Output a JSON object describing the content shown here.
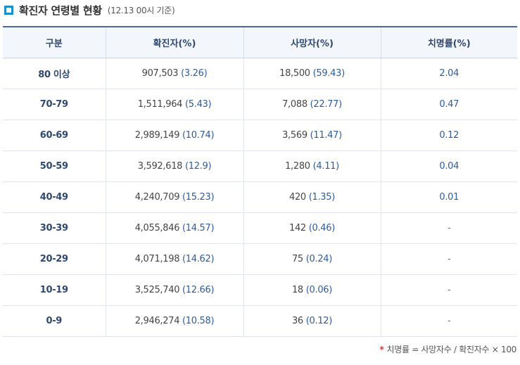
{
  "title": {
    "text": "확진자 연령별 현황",
    "note": "(12.13 00시 기준)"
  },
  "table": {
    "headers": [
      "구분",
      "확진자(%)",
      "사망자(%)",
      "치명률(%)"
    ],
    "rows": [
      {
        "age": "80 이상",
        "cases": "907,503",
        "cases_pct": "(3.26)",
        "deaths": "18,500",
        "deaths_pct": "(59.43)",
        "fatality": "2.04"
      },
      {
        "age": "70-79",
        "cases": "1,511,964",
        "cases_pct": "(5.43)",
        "deaths": "7,088",
        "deaths_pct": "(22.77)",
        "fatality": "0.47"
      },
      {
        "age": "60-69",
        "cases": "2,989,149",
        "cases_pct": "(10.74)",
        "deaths": "3,569",
        "deaths_pct": "(11.47)",
        "fatality": "0.12"
      },
      {
        "age": "50-59",
        "cases": "3,592,618",
        "cases_pct": "(12.9)",
        "deaths": "1,280",
        "deaths_pct": "(4.11)",
        "fatality": "0.04"
      },
      {
        "age": "40-49",
        "cases": "4,240,709",
        "cases_pct": "(15.23)",
        "deaths": "420",
        "deaths_pct": "(1.35)",
        "fatality": "0.01"
      },
      {
        "age": "30-39",
        "cases": "4,055,846",
        "cases_pct": "(14.57)",
        "deaths": "142",
        "deaths_pct": "(0.46)",
        "fatality": "-"
      },
      {
        "age": "20-29",
        "cases": "4,071,198",
        "cases_pct": "(14.62)",
        "deaths": "75",
        "deaths_pct": "(0.24)",
        "fatality": "-"
      },
      {
        "age": "10-19",
        "cases": "3,525,740",
        "cases_pct": "(12.66)",
        "deaths": "18",
        "deaths_pct": "(0.06)",
        "fatality": "-"
      },
      {
        "age": "0-9",
        "cases": "2,946,274",
        "cases_pct": "(10.58)",
        "deaths": "36",
        "deaths_pct": "(0.12)",
        "fatality": "-"
      }
    ]
  },
  "footnote": {
    "star": "*",
    "text": "치명률 = 사망자수 / 확진자수 × 100"
  },
  "colors": {
    "accent": "#1a8fc4",
    "header_text": "#2f4870",
    "value_blue": "#2d5c9a",
    "star_red": "#d8352e"
  }
}
